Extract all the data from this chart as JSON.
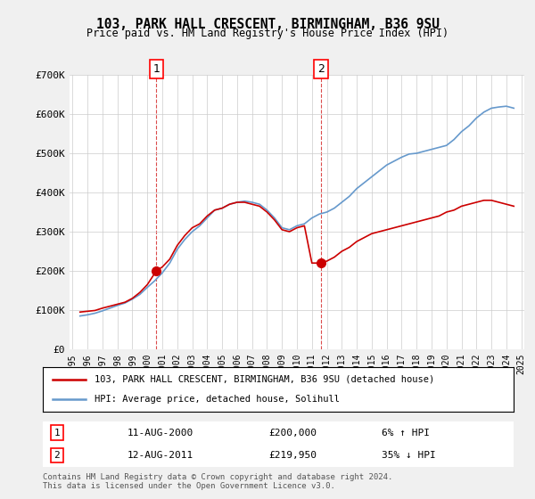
{
  "title": "103, PARK HALL CRESCENT, BIRMINGHAM, B36 9SU",
  "subtitle": "Price paid vs. HM Land Registry's House Price Index (HPI)",
  "legend_line1": "103, PARK HALL CRESCENT, BIRMINGHAM, B36 9SU (detached house)",
  "legend_line2": "HPI: Average price, detached house, Solihull",
  "footnote": "Contains HM Land Registry data © Crown copyright and database right 2024.\nThis data is licensed under the Open Government Licence v3.0.",
  "sale1_label": "1",
  "sale1_date": "11-AUG-2000",
  "sale1_price": "£200,000",
  "sale1_hpi": "6% ↑ HPI",
  "sale2_label": "2",
  "sale2_date": "12-AUG-2011",
  "sale2_price": "£219,950",
  "sale2_hpi": "35% ↓ HPI",
  "sale1_x": 2000.6,
  "sale1_y": 200000,
  "sale2_x": 2011.6,
  "sale2_y": 219950,
  "ylim": [
    0,
    700000
  ],
  "yticks": [
    0,
    100000,
    200000,
    300000,
    400000,
    500000,
    600000,
    700000
  ],
  "ytick_labels": [
    "£0",
    "£100K",
    "£200K",
    "£300K",
    "£400K",
    "£500K",
    "£600K",
    "£700K"
  ],
  "red_color": "#cc0000",
  "blue_color": "#6699cc",
  "background_color": "#f0f0f0",
  "plot_bg_color": "#ffffff",
  "red_x": [
    1995.5,
    1996.0,
    1996.5,
    1997.0,
    1997.5,
    1998.0,
    1998.5,
    1999.0,
    1999.5,
    2000.0,
    2000.6,
    2001.0,
    2001.5,
    2002.0,
    2002.5,
    2003.0,
    2003.5,
    2004.0,
    2004.5,
    2005.0,
    2005.5,
    2006.0,
    2006.5,
    2007.0,
    2007.5,
    2008.0,
    2008.5,
    2009.0,
    2009.5,
    2010.0,
    2010.5,
    2011.0,
    2011.6,
    2012.0,
    2012.5,
    2013.0,
    2013.5,
    2014.0,
    2014.5,
    2015.0,
    2015.5,
    2016.0,
    2016.5,
    2017.0,
    2017.5,
    2018.0,
    2018.5,
    2019.0,
    2019.5,
    2020.0,
    2020.5,
    2021.0,
    2021.5,
    2022.0,
    2022.5,
    2023.0,
    2023.5,
    2024.0,
    2024.5
  ],
  "red_y": [
    95000,
    97000,
    99000,
    105000,
    110000,
    115000,
    120000,
    130000,
    145000,
    165000,
    200000,
    210000,
    230000,
    265000,
    290000,
    310000,
    320000,
    340000,
    355000,
    360000,
    370000,
    375000,
    375000,
    370000,
    365000,
    350000,
    330000,
    305000,
    300000,
    310000,
    315000,
    220000,
    219950,
    225000,
    235000,
    250000,
    260000,
    275000,
    285000,
    295000,
    300000,
    305000,
    310000,
    315000,
    320000,
    325000,
    330000,
    335000,
    340000,
    350000,
    355000,
    365000,
    370000,
    375000,
    380000,
    380000,
    375000,
    370000,
    365000
  ],
  "blue_x": [
    1995.5,
    1996.0,
    1996.5,
    1997.0,
    1997.5,
    1998.0,
    1998.5,
    1999.0,
    1999.5,
    2000.0,
    2000.5,
    2001.0,
    2001.5,
    2002.0,
    2002.5,
    2003.0,
    2003.5,
    2004.0,
    2004.5,
    2005.0,
    2005.5,
    2006.0,
    2006.5,
    2007.0,
    2007.5,
    2008.0,
    2008.5,
    2009.0,
    2009.5,
    2010.0,
    2010.5,
    2011.0,
    2011.5,
    2012.0,
    2012.5,
    2013.0,
    2013.5,
    2014.0,
    2014.5,
    2015.0,
    2015.5,
    2016.0,
    2016.5,
    2017.0,
    2017.5,
    2018.0,
    2018.5,
    2019.0,
    2019.5,
    2020.0,
    2020.5,
    2021.0,
    2021.5,
    2022.0,
    2022.5,
    2023.0,
    2023.5,
    2024.0,
    2024.5
  ],
  "blue_y": [
    85000,
    88000,
    92000,
    98000,
    105000,
    112000,
    118000,
    128000,
    140000,
    158000,
    175000,
    195000,
    220000,
    255000,
    280000,
    300000,
    315000,
    335000,
    355000,
    360000,
    370000,
    375000,
    378000,
    375000,
    370000,
    355000,
    335000,
    310000,
    305000,
    315000,
    320000,
    335000,
    345000,
    350000,
    360000,
    375000,
    390000,
    410000,
    425000,
    440000,
    455000,
    470000,
    480000,
    490000,
    498000,
    500000,
    505000,
    510000,
    515000,
    520000,
    535000,
    555000,
    570000,
    590000,
    605000,
    615000,
    618000,
    620000,
    615000
  ],
  "xticks": [
    1995,
    1996,
    1997,
    1998,
    1999,
    2000,
    2001,
    2002,
    2003,
    2004,
    2005,
    2006,
    2007,
    2008,
    2009,
    2010,
    2011,
    2012,
    2013,
    2014,
    2015,
    2016,
    2017,
    2018,
    2019,
    2020,
    2021,
    2022,
    2023,
    2024,
    2025
  ]
}
